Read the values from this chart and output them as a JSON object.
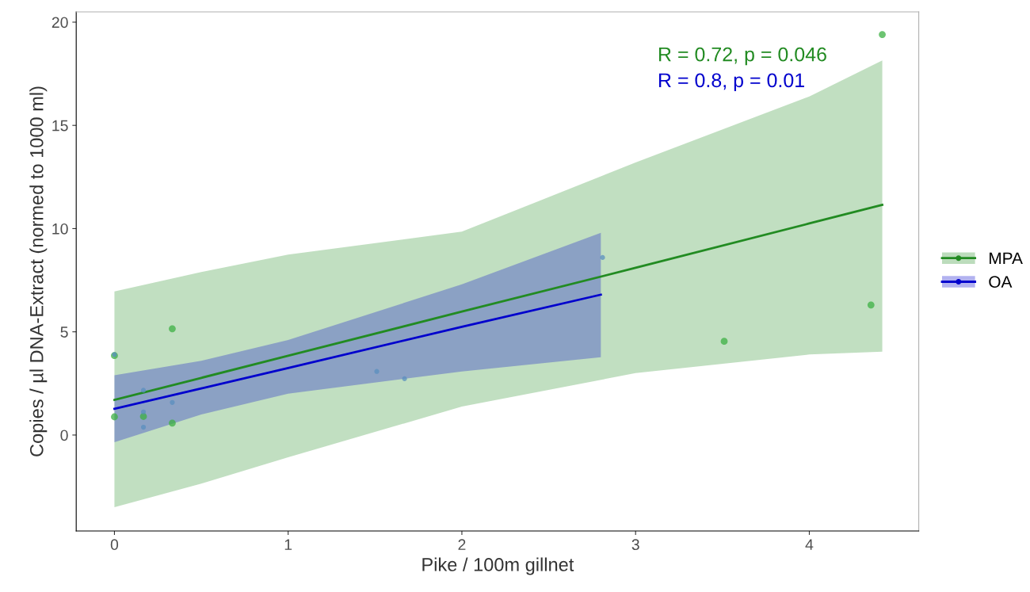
{
  "chart_data": {
    "type": "scatter",
    "xlabel": "Pike / 100m gillnet",
    "ylabel": "Copies / µl DNA-Extract (normed to 1000 ml)",
    "xlim": [
      -0.22,
      4.63
    ],
    "ylim": [
      -4.65,
      20.5
    ],
    "xticks": [
      0,
      1,
      2,
      3,
      4
    ],
    "yticks": [
      0,
      5,
      10,
      15,
      20
    ],
    "grid": false,
    "legend": "right",
    "marker": "circle",
    "annotations": [
      "R = 0.72, p = 0.046",
      "R = 0.8, p = 0.01"
    ],
    "series": [
      {
        "color": "#3cb043",
        "x": [
          0,
          0,
          0.167,
          0.333,
          0.333,
          3.51,
          4.355,
          4.42
        ],
        "values": [
          0.88,
          3.85,
          0.9,
          5.15,
          0.58,
          4.54,
          6.3,
          19.4
        ]
      },
      {
        "color": "#5a8fbf",
        "x": [
          0,
          0.167,
          0.167,
          0.167,
          0.333,
          1.51,
          1.67,
          2.81
        ],
        "values": [
          3.9,
          2.17,
          1.12,
          0.38,
          1.58,
          3.08,
          2.73,
          8.6
        ]
      },
      {
        "type": "line",
        "marker": "none",
        "name": "MPA",
        "color": "#228b22",
        "x": [
          0,
          0.5,
          1,
          2,
          3,
          4,
          4.42
        ],
        "values": [
          1.7,
          2.77,
          3.84,
          5.98,
          8.1,
          10.25,
          11.15
        ],
        "lower": [
          -3.5,
          -2.35,
          -1.08,
          1.38,
          3.0,
          3.9,
          4.04
        ],
        "upper": [
          6.96,
          7.9,
          8.74,
          9.85,
          13.2,
          16.4,
          18.15
        ]
      },
      {
        "type": "line",
        "marker": "none",
        "name": "OA",
        "color": "#0000cd",
        "x": [
          0,
          0.5,
          1,
          2,
          2.8
        ],
        "values": [
          1.27,
          2.26,
          3.25,
          5.24,
          6.8
        ],
        "lower": [
          -0.35,
          1.0,
          2.0,
          3.08,
          3.77
        ],
        "upper": [
          2.9,
          3.6,
          4.6,
          7.3,
          9.8
        ]
      }
    ]
  }
}
